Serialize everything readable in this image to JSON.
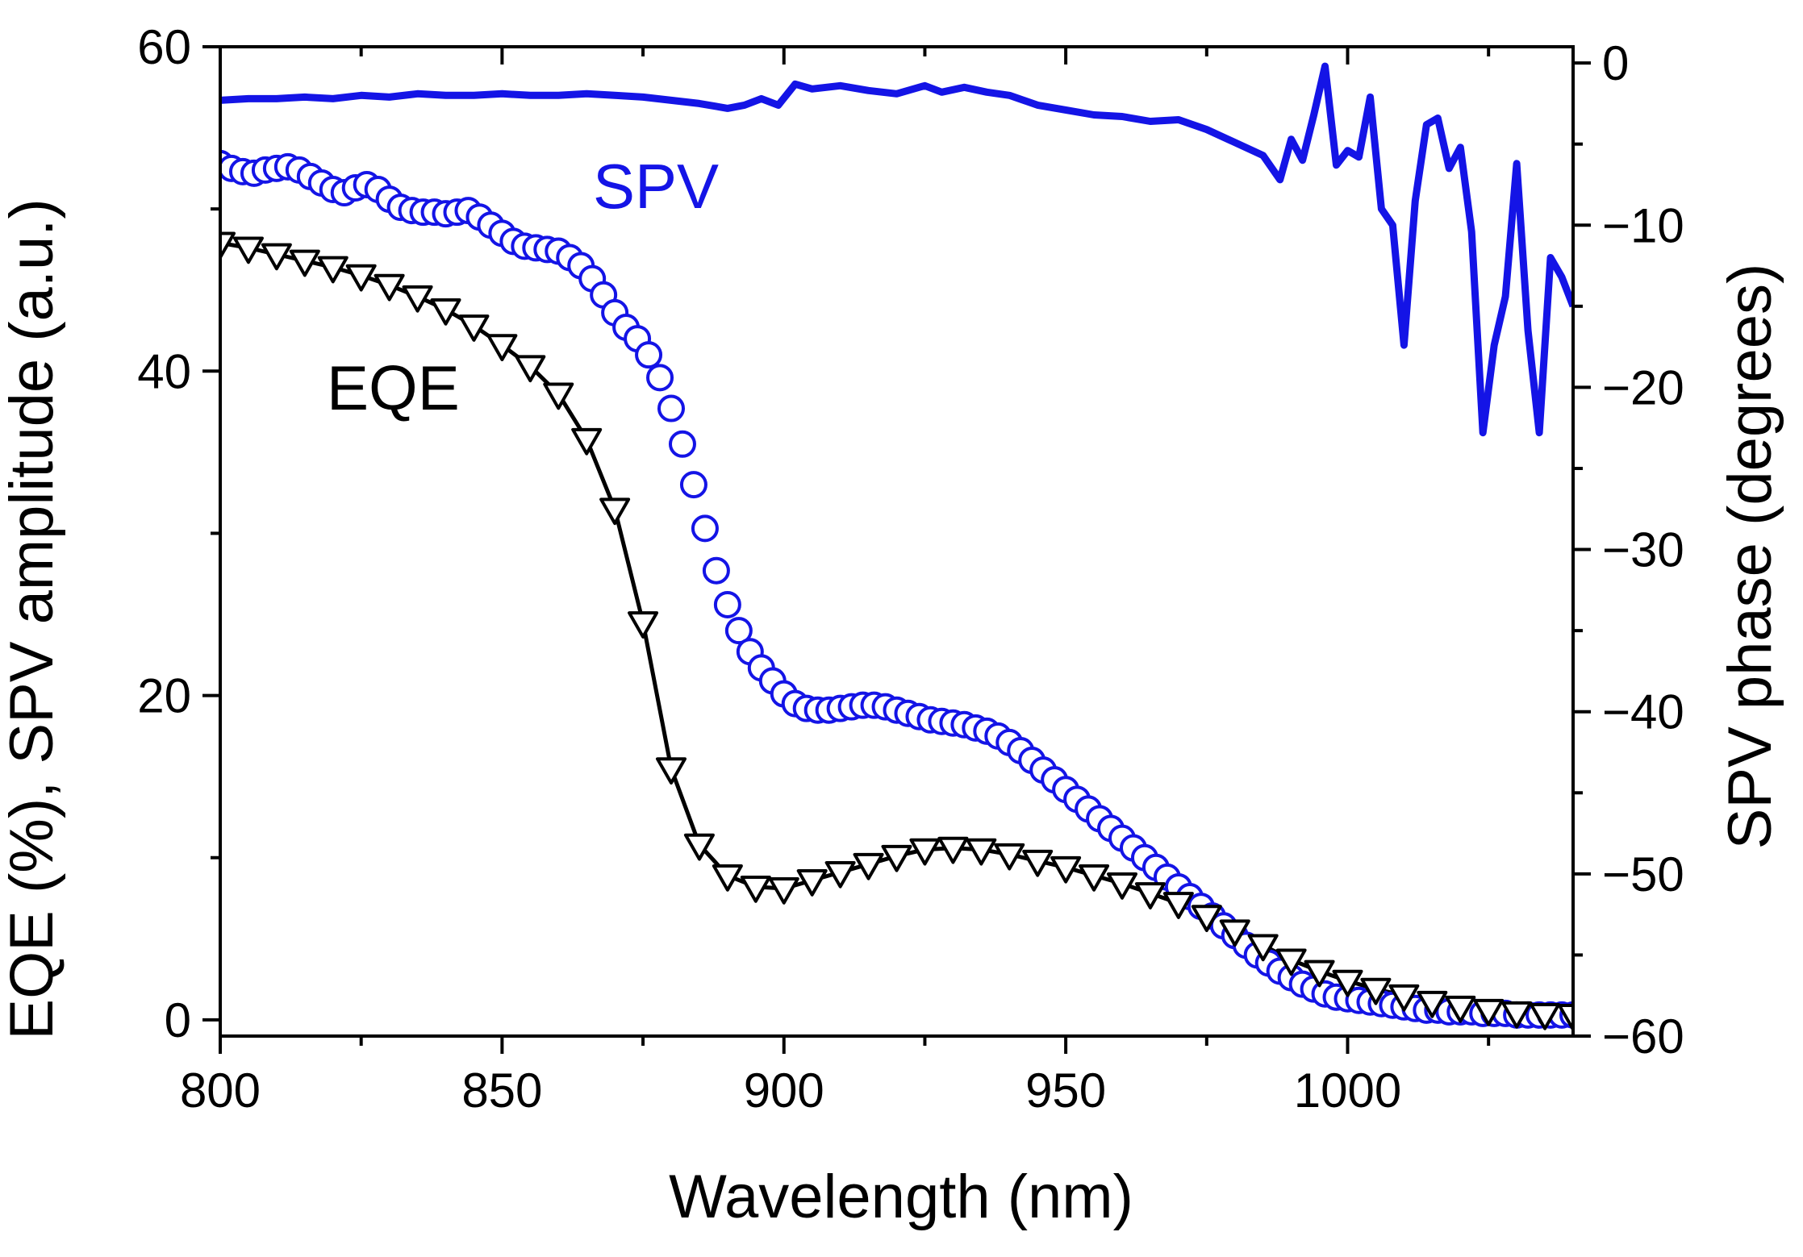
{
  "chart_data": {
    "type": "line",
    "title": "",
    "xlabel": "Wavelength (nm)",
    "ylabel": "EQE (%), SPV amplitude (a.u.)",
    "y2label": "SPV phase (degrees)",
    "xlim": [
      800,
      1040
    ],
    "ylim": [
      -1,
      60
    ],
    "y2lim": [
      -60,
      1
    ],
    "x_ticks": [
      800,
      850,
      900,
      950,
      1000
    ],
    "y_ticks": [
      0,
      20,
      40,
      60
    ],
    "y2_ticks": [
      0,
      -10,
      -20,
      -30,
      -40,
      -50,
      -60
    ],
    "grid": false,
    "annotations": [
      {
        "text": "SPV",
        "color": "#1414e6",
        "series": "SPV amplitude"
      },
      {
        "text": "EQE",
        "color": "#000000",
        "series": "EQE"
      }
    ],
    "colors": {
      "spv": "#1414e6",
      "eqe": "#000000"
    },
    "series": [
      {
        "name": "EQE",
        "axis": "left",
        "marker": "triangle-down",
        "x": [
          800,
          805,
          810,
          815,
          820,
          825,
          830,
          835,
          840,
          845,
          850,
          855,
          860,
          865,
          870,
          875,
          880,
          885,
          890,
          895,
          900,
          905,
          910,
          915,
          920,
          925,
          930,
          935,
          940,
          945,
          950,
          955,
          960,
          965,
          970,
          975,
          980,
          985,
          990,
          995,
          1000,
          1005,
          1010,
          1015,
          1020,
          1025,
          1030,
          1035,
          1040
        ],
        "values": [
          47.9,
          47.6,
          47.2,
          46.8,
          46.4,
          45.9,
          45.3,
          44.6,
          43.8,
          42.8,
          41.6,
          40.3,
          38.6,
          35.8,
          31.5,
          24.5,
          15.5,
          10.8,
          8.9,
          8.2,
          8.1,
          8.6,
          9.1,
          9.6,
          10.1,
          10.5,
          10.6,
          10.5,
          10.2,
          9.8,
          9.4,
          8.9,
          8.4,
          7.8,
          7.2,
          6.4,
          5.5,
          4.6,
          3.7,
          3.0,
          2.4,
          1.9,
          1.5,
          1.1,
          0.8,
          0.6,
          0.45,
          0.35,
          0.3
        ]
      },
      {
        "name": "SPV amplitude",
        "axis": "left",
        "marker": "circle",
        "x": [
          800,
          802,
          804,
          806,
          808,
          810,
          812,
          814,
          816,
          818,
          820,
          822,
          824,
          826,
          828,
          830,
          832,
          834,
          836,
          838,
          840,
          842,
          844,
          846,
          848,
          850,
          852,
          854,
          856,
          858,
          860,
          862,
          864,
          866,
          868,
          870,
          872,
          874,
          876,
          878,
          880,
          882,
          884,
          886,
          888,
          890,
          892,
          894,
          896,
          898,
          900,
          902,
          904,
          906,
          908,
          910,
          912,
          914,
          916,
          918,
          920,
          922,
          924,
          926,
          928,
          930,
          932,
          934,
          936,
          938,
          940,
          942,
          944,
          946,
          948,
          950,
          952,
          954,
          956,
          958,
          960,
          962,
          964,
          966,
          968,
          970,
          972,
          974,
          976,
          978,
          980,
          982,
          984,
          986,
          988,
          990,
          992,
          994,
          996,
          998,
          1000,
          1002,
          1004,
          1006,
          1008,
          1010,
          1012,
          1014,
          1016,
          1018,
          1020,
          1022,
          1024,
          1026,
          1028,
          1030,
          1032,
          1034,
          1036,
          1038,
          1040
        ],
        "values": [
          52.8,
          52.5,
          52.3,
          52.2,
          52.4,
          52.5,
          52.6,
          52.4,
          52.0,
          51.6,
          51.2,
          51.0,
          51.3,
          51.5,
          51.2,
          50.6,
          50.1,
          49.9,
          49.8,
          49.8,
          49.7,
          49.8,
          49.9,
          49.5,
          49.0,
          48.5,
          48.0,
          47.7,
          47.6,
          47.5,
          47.4,
          47.0,
          46.5,
          45.7,
          44.7,
          43.6,
          42.7,
          42.0,
          41.0,
          39.6,
          37.7,
          35.5,
          33.0,
          30.3,
          27.7,
          25.6,
          24.0,
          22.7,
          21.7,
          20.9,
          20.1,
          19.5,
          19.2,
          19.1,
          19.1,
          19.2,
          19.3,
          19.4,
          19.4,
          19.3,
          19.1,
          18.9,
          18.7,
          18.5,
          18.4,
          18.3,
          18.2,
          18.0,
          17.8,
          17.5,
          17.1,
          16.6,
          16.0,
          15.4,
          14.8,
          14.2,
          13.6,
          13.0,
          12.4,
          11.8,
          11.2,
          10.6,
          10.0,
          9.4,
          8.8,
          8.2,
          7.6,
          7.0,
          6.4,
          5.8,
          5.2,
          4.6,
          4.0,
          3.5,
          3.0,
          2.6,
          2.2,
          1.9,
          1.6,
          1.4,
          1.3,
          1.2,
          1.1,
          1.0,
          0.9,
          0.8,
          0.7,
          0.6,
          0.6,
          0.5,
          0.5,
          0.5,
          0.4,
          0.4,
          0.4,
          0.3,
          0.3,
          0.3,
          0.3,
          0.3,
          0.3
        ]
      },
      {
        "name": "SPV phase",
        "axis": "right",
        "marker": "none",
        "x": [
          800,
          805,
          810,
          815,
          820,
          825,
          830,
          835,
          840,
          845,
          850,
          855,
          860,
          865,
          870,
          875,
          880,
          885,
          890,
          893,
          896,
          899,
          902,
          905,
          910,
          915,
          920,
          925,
          928,
          932,
          936,
          940,
          945,
          950,
          955,
          960,
          965,
          970,
          975,
          980,
          985,
          988,
          990,
          992,
          994,
          996,
          998,
          1000,
          1002,
          1004,
          1006,
          1008,
          1010,
          1012,
          1014,
          1016,
          1018,
          1020,
          1022,
          1024,
          1026,
          1028,
          1030,
          1032,
          1034,
          1036,
          1038,
          1040
        ],
        "values": [
          -2.3,
          -2.2,
          -2.2,
          -2.1,
          -2.2,
          -2.0,
          -2.1,
          -1.9,
          -2.0,
          -2.0,
          -1.9,
          -2.0,
          -2.0,
          -1.9,
          -2.0,
          -2.1,
          -2.3,
          -2.5,
          -2.8,
          -2.6,
          -2.2,
          -2.6,
          -1.3,
          -1.6,
          -1.4,
          -1.7,
          -1.9,
          -1.4,
          -1.8,
          -1.5,
          -1.8,
          -2.0,
          -2.6,
          -2.9,
          -3.2,
          -3.3,
          -3.6,
          -3.5,
          -4.1,
          -4.9,
          -5.7,
          -7.2,
          -4.7,
          -6.0,
          -3.2,
          -0.2,
          -6.3,
          -5.4,
          -5.8,
          -2.1,
          -9.0,
          -10.0,
          -17.4,
          -8.5,
          -3.8,
          -3.4,
          -6.5,
          -5.2,
          -10.4,
          -22.8,
          -17.4,
          -14.4,
          -6.2,
          -16.5,
          -22.8,
          -12.0,
          -13.2,
          -15.0
        ]
      }
    ]
  }
}
